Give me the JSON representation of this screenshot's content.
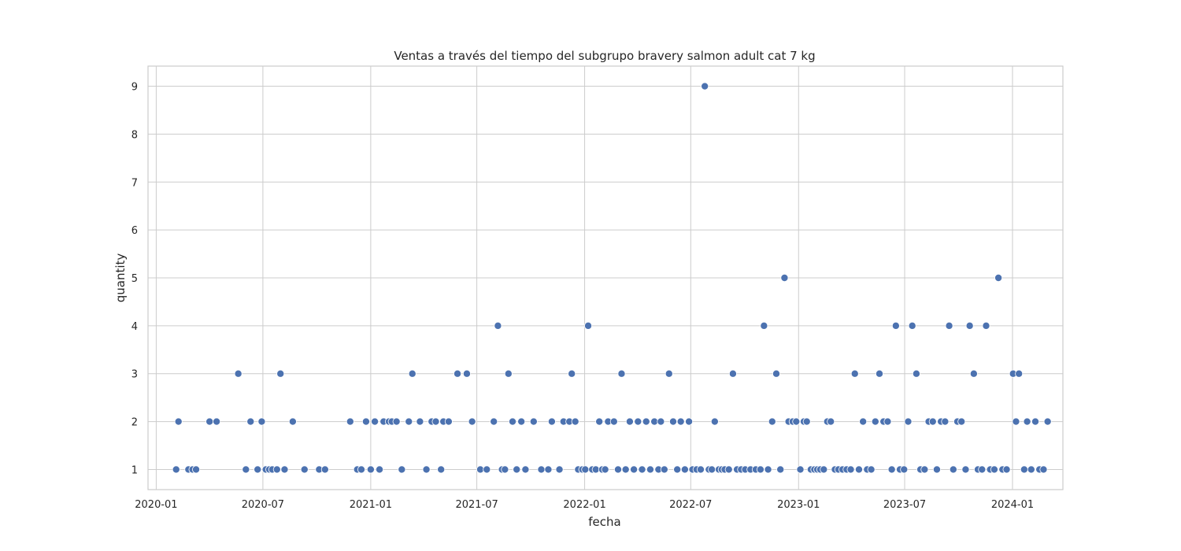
{
  "chart_data": {
    "type": "scatter",
    "title": "Ventas a través del tiempo del subgrupo bravery salmon adult cat 7 kg",
    "xlabel": "fecha",
    "ylabel": "quantity",
    "x_ticks": [
      "2020-01",
      "2020-07",
      "2021-01",
      "2021-07",
      "2022-01",
      "2022-07",
      "2023-01",
      "2023-07",
      "2024-01"
    ],
    "y_ticks": [
      1,
      2,
      3,
      4,
      5,
      6,
      7,
      8,
      9
    ],
    "xlim": [
      "2019-12-18",
      "2024-03-27"
    ],
    "ylim": [
      0.58,
      9.42
    ],
    "grid": true,
    "marker_color": "#4c72b0",
    "points": [
      [
        "2020-02-04",
        1
      ],
      [
        "2020-02-08",
        2
      ],
      [
        "2020-02-25",
        1
      ],
      [
        "2020-03-03",
        1
      ],
      [
        "2020-03-09",
        1
      ],
      [
        "2020-04-01",
        2
      ],
      [
        "2020-04-13",
        2
      ],
      [
        "2020-05-20",
        3
      ],
      [
        "2020-06-02",
        1
      ],
      [
        "2020-06-10",
        2
      ],
      [
        "2020-06-22",
        1
      ],
      [
        "2020-06-29",
        2
      ],
      [
        "2020-07-06",
        1
      ],
      [
        "2020-07-12",
        1
      ],
      [
        "2020-07-17",
        1
      ],
      [
        "2020-07-25",
        1
      ],
      [
        "2020-07-31",
        3
      ],
      [
        "2020-08-07",
        1
      ],
      [
        "2020-08-21",
        2
      ],
      [
        "2020-09-10",
        1
      ],
      [
        "2020-10-05",
        1
      ],
      [
        "2020-10-15",
        1
      ],
      [
        "2020-11-27",
        2
      ],
      [
        "2020-12-09",
        1
      ],
      [
        "2020-12-16",
        1
      ],
      [
        "2020-12-24",
        2
      ],
      [
        "2021-01-01",
        1
      ],
      [
        "2021-01-08",
        2
      ],
      [
        "2021-01-16",
        1
      ],
      [
        "2021-01-23",
        2
      ],
      [
        "2021-02-01",
        2
      ],
      [
        "2021-02-06",
        2
      ],
      [
        "2021-02-14",
        2
      ],
      [
        "2021-02-23",
        1
      ],
      [
        "2021-03-07",
        2
      ],
      [
        "2021-03-13",
        3
      ],
      [
        "2021-03-26",
        2
      ],
      [
        "2021-04-06",
        1
      ],
      [
        "2021-04-15",
        2
      ],
      [
        "2021-04-22",
        2
      ],
      [
        "2021-05-01",
        1
      ],
      [
        "2021-05-05",
        2
      ],
      [
        "2021-05-14",
        2
      ],
      [
        "2021-05-29",
        3
      ],
      [
        "2021-06-14",
        3
      ],
      [
        "2021-06-23",
        2
      ],
      [
        "2021-07-07",
        1
      ],
      [
        "2021-07-18",
        1
      ],
      [
        "2021-07-30",
        2
      ],
      [
        "2021-08-06",
        4
      ],
      [
        "2021-08-13",
        1
      ],
      [
        "2021-08-18",
        1
      ],
      [
        "2021-08-24",
        3
      ],
      [
        "2021-08-31",
        2
      ],
      [
        "2021-09-07",
        1
      ],
      [
        "2021-09-15",
        2
      ],
      [
        "2021-09-22",
        1
      ],
      [
        "2021-10-06",
        2
      ],
      [
        "2021-10-19",
        1
      ],
      [
        "2021-10-31",
        1
      ],
      [
        "2021-11-06",
        2
      ],
      [
        "2021-11-19",
        1
      ],
      [
        "2021-11-26",
        2
      ],
      [
        "2021-12-06",
        2
      ],
      [
        "2021-12-10",
        3
      ],
      [
        "2021-12-16",
        2
      ],
      [
        "2021-12-21",
        1
      ],
      [
        "2021-12-28",
        1
      ],
      [
        "2022-01-02",
        1
      ],
      [
        "2022-01-07",
        4
      ],
      [
        "2022-01-14",
        1
      ],
      [
        "2022-01-20",
        1
      ],
      [
        "2022-01-26",
        2
      ],
      [
        "2022-01-31",
        1
      ],
      [
        "2022-02-05",
        1
      ],
      [
        "2022-02-10",
        2
      ],
      [
        "2022-02-20",
        2
      ],
      [
        "2022-02-27",
        1
      ],
      [
        "2022-03-05",
        3
      ],
      [
        "2022-03-12",
        1
      ],
      [
        "2022-03-19",
        2
      ],
      [
        "2022-03-26",
        1
      ],
      [
        "2022-04-02",
        2
      ],
      [
        "2022-04-09",
        1
      ],
      [
        "2022-04-16",
        2
      ],
      [
        "2022-04-23",
        1
      ],
      [
        "2022-04-30",
        2
      ],
      [
        "2022-05-07",
        1
      ],
      [
        "2022-05-11",
        2
      ],
      [
        "2022-05-17",
        1
      ],
      [
        "2022-05-25",
        3
      ],
      [
        "2022-06-01",
        2
      ],
      [
        "2022-06-08",
        1
      ],
      [
        "2022-06-14",
        2
      ],
      [
        "2022-06-21",
        1
      ],
      [
        "2022-06-28",
        2
      ],
      [
        "2022-07-04",
        1
      ],
      [
        "2022-07-11",
        1
      ],
      [
        "2022-07-18",
        1
      ],
      [
        "2022-07-25",
        9
      ],
      [
        "2022-08-01",
        1
      ],
      [
        "2022-08-06",
        1
      ],
      [
        "2022-08-11",
        2
      ],
      [
        "2022-08-18",
        1
      ],
      [
        "2022-08-23",
        1
      ],
      [
        "2022-08-28",
        1
      ],
      [
        "2022-09-04",
        1
      ],
      [
        "2022-09-11",
        3
      ],
      [
        "2022-09-18",
        1
      ],
      [
        "2022-09-25",
        1
      ],
      [
        "2022-10-02",
        1
      ],
      [
        "2022-10-11",
        1
      ],
      [
        "2022-10-20",
        1
      ],
      [
        "2022-10-28",
        1
      ],
      [
        "2022-11-03",
        4
      ],
      [
        "2022-11-10",
        1
      ],
      [
        "2022-11-17",
        2
      ],
      [
        "2022-11-24",
        3
      ],
      [
        "2022-12-01",
        1
      ],
      [
        "2022-12-08",
        5
      ],
      [
        "2022-12-15",
        2
      ],
      [
        "2022-12-22",
        2
      ],
      [
        "2022-12-28",
        2
      ],
      [
        "2023-01-04",
        1
      ],
      [
        "2023-01-10",
        2
      ],
      [
        "2023-01-15",
        2
      ],
      [
        "2023-01-22",
        1
      ],
      [
        "2023-01-28",
        1
      ],
      [
        "2023-02-02",
        1
      ],
      [
        "2023-02-07",
        1
      ],
      [
        "2023-02-13",
        1
      ],
      [
        "2023-02-19",
        2
      ],
      [
        "2023-02-25",
        2
      ],
      [
        "2023-03-04",
        1
      ],
      [
        "2023-03-10",
        1
      ],
      [
        "2023-03-17",
        1
      ],
      [
        "2023-03-24",
        1
      ],
      [
        "2023-03-31",
        1
      ],
      [
        "2023-04-07",
        3
      ],
      [
        "2023-04-14",
        1
      ],
      [
        "2023-04-21",
        2
      ],
      [
        "2023-04-28",
        1
      ],
      [
        "2023-05-05",
        1
      ],
      [
        "2023-05-12",
        2
      ],
      [
        "2023-05-19",
        3
      ],
      [
        "2023-05-26",
        2
      ],
      [
        "2023-06-02",
        2
      ],
      [
        "2023-06-09",
        1
      ],
      [
        "2023-06-16",
        4
      ],
      [
        "2023-06-23",
        1
      ],
      [
        "2023-06-30",
        1
      ],
      [
        "2023-07-07",
        2
      ],
      [
        "2023-07-14",
        4
      ],
      [
        "2023-07-21",
        3
      ],
      [
        "2023-07-28",
        1
      ],
      [
        "2023-08-04",
        1
      ],
      [
        "2023-08-11",
        2
      ],
      [
        "2023-08-18",
        2
      ],
      [
        "2023-08-25",
        1
      ],
      [
        "2023-09-01",
        2
      ],
      [
        "2023-09-08",
        2
      ],
      [
        "2023-09-15",
        4
      ],
      [
        "2023-09-22",
        1
      ],
      [
        "2023-09-29",
        2
      ],
      [
        "2023-10-06",
        2
      ],
      [
        "2023-10-13",
        1
      ],
      [
        "2023-10-20",
        4
      ],
      [
        "2023-10-27",
        3
      ],
      [
        "2023-11-03",
        1
      ],
      [
        "2023-11-10",
        1
      ],
      [
        "2023-11-17",
        4
      ],
      [
        "2023-11-24",
        1
      ],
      [
        "2023-12-01",
        1
      ],
      [
        "2023-12-08",
        5
      ],
      [
        "2023-12-15",
        1
      ],
      [
        "2023-12-22",
        1
      ],
      [
        "2024-01-02",
        3
      ],
      [
        "2024-01-07",
        2
      ],
      [
        "2024-01-12",
        3
      ],
      [
        "2024-01-21",
        1
      ],
      [
        "2024-01-26",
        2
      ],
      [
        "2024-02-02",
        1
      ],
      [
        "2024-02-09",
        2
      ],
      [
        "2024-02-16",
        1
      ],
      [
        "2024-02-23",
        1
      ],
      [
        "2024-03-01",
        2
      ]
    ]
  }
}
